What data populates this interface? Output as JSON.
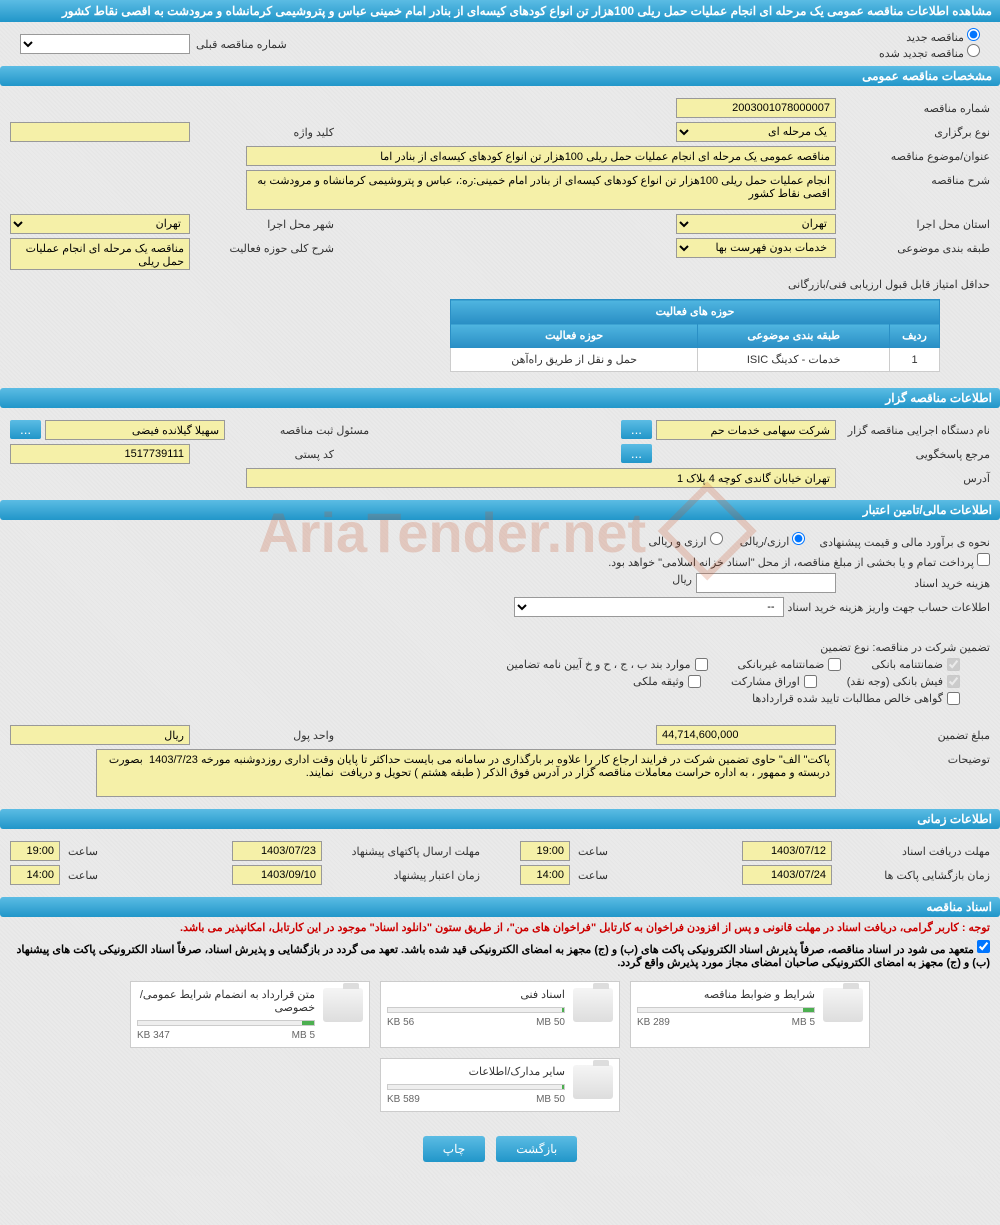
{
  "header": {
    "title": "مشاهده اطلاعات مناقصه عمومی یک مرحله ای انجام عملیات حمل ریلی 100هزار تن انواع کودهای کیسه‌ای از بنادر امام خمینی عباس و پتروشیمی کرمانشاه و مرودشت به اقصی نقاط کشور"
  },
  "radio": {
    "new_label": "مناقصه جدید",
    "renewed_label": "مناقصه تجدید شده",
    "prev_label": "شماره مناقصه قبلی",
    "prev_placeholder": "--"
  },
  "sections": {
    "general": "مشخصات مناقصه عمومی",
    "issuer": "اطلاعات مناقصه گزار",
    "financial": "اطلاعات مالی/تامین اعتبار",
    "timing": "اطلاعات زمانی",
    "docs": "اسناد مناقصه"
  },
  "general": {
    "number_label": "شماره مناقصه",
    "number": "2003001078000007",
    "type_label": "نوع برگزاری",
    "type": "یک مرحله ای",
    "keyword_label": "کلید واژه",
    "keyword": "",
    "subject_label": "عنوان/موضوع مناقصه",
    "subject": "مناقصه عمومی یک مرحله ای انجام عملیات حمل ریلی 100هزار تن انواع کودهای کیسه‌ای از بنادر اما",
    "desc_label": "شرح مناقصه",
    "desc": "انجام عملیات حمل ریلی 100هزار تن انواع کودهای کیسه‌ای از بنادر امام خمینی:ره:، عباس و پتروشیمی کرمانشاه و مرودشت به اقصی نقاط کشور",
    "province_label": "استان محل اجرا",
    "province": "تهران",
    "city_label": "شهر محل اجرا",
    "city": "تهران",
    "category_label": "طبقه بندی موضوعی",
    "category": "خدمات بدون فهرست بها",
    "activity_desc_label": "شرح کلی حوزه فعالیت",
    "activity_desc": "مناقصه یک مرحله ای انجام عملیات حمل ریلی",
    "minscore_label": "حداقل امتیاز قابل قبول ارزیابی فنی/بازرگانی"
  },
  "activity_table": {
    "title": "حوزه های فعالیت",
    "col_row": "ردیف",
    "col_category": "طبقه بندی موضوعی",
    "col_activity": "حوزه فعالیت",
    "rows": [
      {
        "n": "1",
        "cat": "خدمات - کدینگ ISIC",
        "act": "حمل و نقل از طریق راه‌آهن"
      }
    ]
  },
  "issuer": {
    "org_label": "نام دستگاه اجرایی مناقصه گزار",
    "org": "شرکت سهامی خدمات حم",
    "responsible_label": "مسئول ثبت مناقصه",
    "responsible": "سهیلا گیلانده فیضی",
    "ref_label": "مرجع پاسخگویی",
    "postal_label": "کد پستی",
    "postal": "1517739111",
    "address_label": "آدرس",
    "address": "تهران خیابان گاندی کوچه 4 پلاک 1"
  },
  "financial": {
    "estimate_label": "نحوه ی برآورد مالی و قیمت پیشنهادی",
    "currency_fx": "ارزی/ریالی",
    "currency_both": "ارزی و ریالی",
    "treasury_note": "پرداخت تمام و یا بخشی از مبلغ مناقصه، از محل \"اسناد خزانه اسلامی\" خواهد بود.",
    "doc_fee_label": "هزینه خرید اسناد",
    "rial": "ریال",
    "account_label": "اطلاعات حساب جهت واریز هزینه خرید اسناد",
    "account_placeholder": "--",
    "guarantee_label": "تضمین شرکت در مناقصه:   نوع تضمین",
    "chk_bank": "ضمانتنامه بانکی",
    "chk_nonbank": "ضمانتنامه غیربانکی",
    "chk_bonds": "موارد بند ب ، ج ، ح و خ آیین نامه تضامین",
    "chk_cash": "فیش بانکی (وجه نقد)",
    "chk_shares": "اوراق مشارکت",
    "chk_property": "وثیقه ملکی",
    "chk_cert": "گواهی خالص مطالبات تایید شده قراردادها",
    "amount_label": "مبلغ تضمین",
    "amount": "44,714,600,000",
    "unit_label": "واحد پول",
    "unit": "ریال",
    "notes_label": "توضیحات",
    "notes": "پاکت\" الف\" حاوی تضمین شرکت در فرایند ارجاع کار را علاوه بر بارگذاری در سامانه می بایست حداکثر تا پایان وقت اداری روزدوشنبه مورخه 1403/7/23  بصورت دربسته و ممهور ، به اداره حراست معاملات مناقصه گزار در آدرس فوق الذکر ( طبقه هشتم ) تحویل و دریافت  نمایند."
  },
  "timing": {
    "receive_label": "مهلت دریافت اسناد",
    "receive_date": "1403/07/12",
    "receive_time": "19:00",
    "submit_label": "مهلت ارسال پاکتهای پیشنهاد",
    "submit_date": "1403/07/23",
    "submit_time": "19:00",
    "open_label": "زمان بازگشایی پاکت ها",
    "open_date": "1403/07/24",
    "open_time": "14:00",
    "validity_label": "زمان اعتبار پیشنهاد",
    "validity_date": "1403/09/10",
    "validity_time": "14:00",
    "time_label": "ساعت"
  },
  "docs": {
    "notice1": "توجه : کاربر گرامی، دریافت اسناد در مهلت قانونی و پس از افزودن فراخوان به کارتابل \"فراخوان های من\"، از طریق ستون \"دانلود اسناد\" موجود در این کارتابل، امکانپذیر می باشد.",
    "notice2": "متعهد می شود در اسناد مناقصه، صرفاً پذیرش اسناد الکترونیکی پاکت های (ب) و (ج) مجهز به امضای الکترونیکی قید شده باشد. تعهد می گردد در بازگشایی و پذیرش اسناد، صرفاً اسناد الکترونیکی پاکت های پیشنهاد (ب) و (ج) مجهز به امضای الکترونیکی صاحبان امضای مجاز مورد پذیرش واقع گردد.",
    "files": [
      {
        "title": "شرایط و ضوابط مناقصه",
        "used": "289 KB",
        "total": "5 MB",
        "pct": 6
      },
      {
        "title": "اسناد فنی",
        "used": "56 KB",
        "total": "50 MB",
        "pct": 1
      },
      {
        "title": "متن قرارداد به انضمام شرایط عمومی/خصوصی",
        "used": "347 KB",
        "total": "5 MB",
        "pct": 7
      },
      {
        "title": "سایر مدارک/اطلاعات",
        "used": "589 KB",
        "total": "50 MB",
        "pct": 1
      }
    ]
  },
  "footer": {
    "back": "بازگشت",
    "print": "چاپ"
  },
  "watermark": "AriaTender.net"
}
